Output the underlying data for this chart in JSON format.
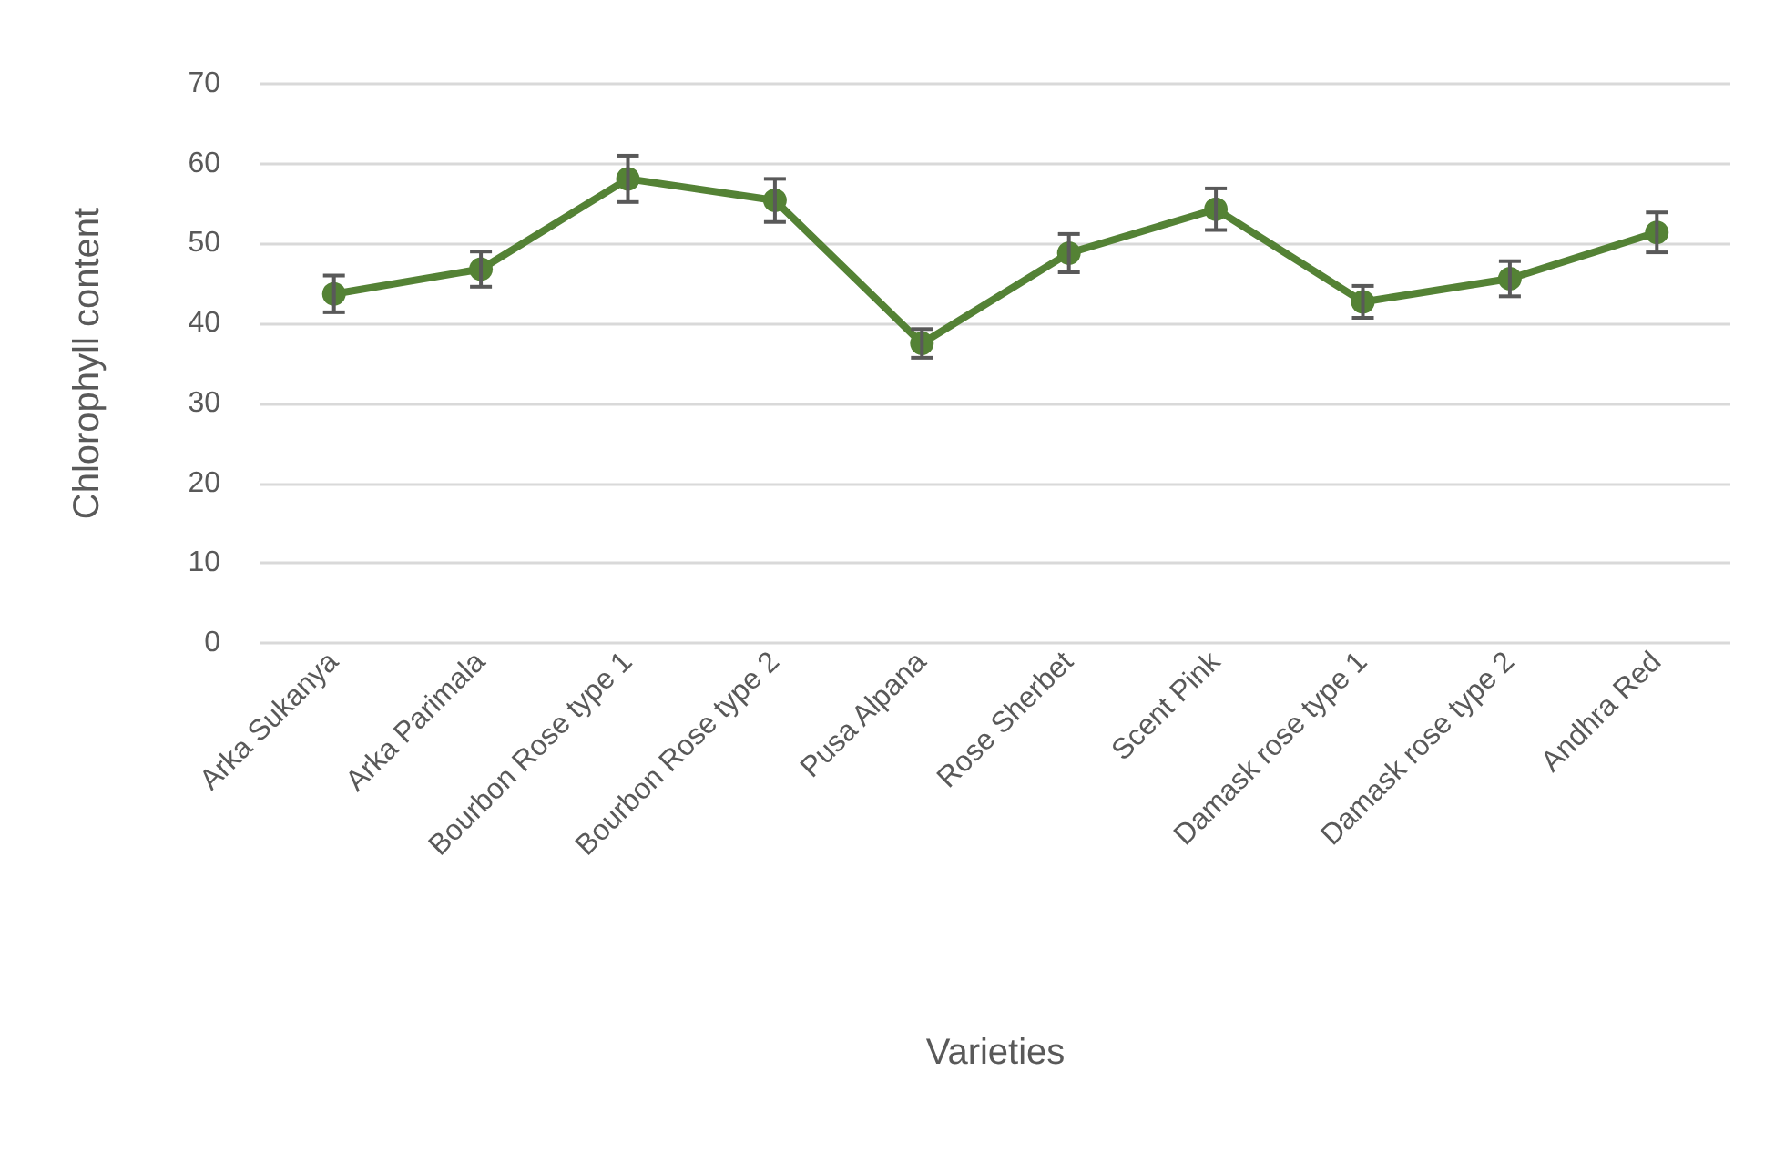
{
  "chart_data": {
    "type": "line",
    "xlabel": "Varieties",
    "ylabel": "Chlorophyll content",
    "categories": [
      "Arka Sukanya",
      "Arka Parimala",
      "Bourbon Rose type 1",
      "Bourbon Rose type 2",
      "Pusa Alpana",
      "Rose Sherbet",
      "Scent Pink",
      "Damask rose type 1",
      "Damask rose type 2",
      "Andhra Red"
    ],
    "values": [
      43.7,
      46.8,
      58.1,
      55.4,
      37.5,
      48.8,
      54.3,
      42.7,
      45.6,
      51.4
    ],
    "errors": [
      2.3,
      2.2,
      2.9,
      2.7,
      1.8,
      2.4,
      2.6,
      2.0,
      2.2,
      2.5
    ],
    "color": "#548235",
    "marker": "circle",
    "line_style": "solid",
    "ylim": [
      0,
      70
    ],
    "yticks": [
      0,
      10,
      20,
      30,
      40,
      50,
      60,
      70
    ],
    "grid": "y"
  }
}
